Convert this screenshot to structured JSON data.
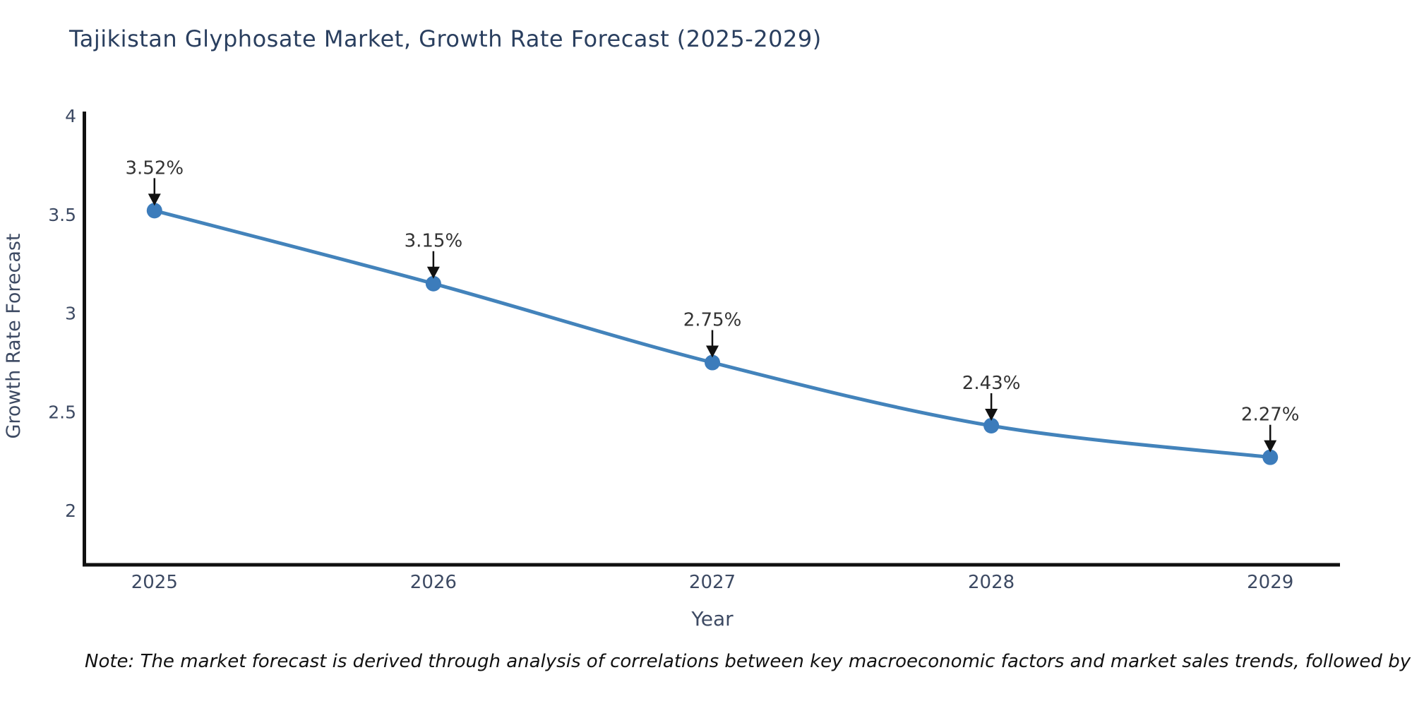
{
  "title": "Tajikistan Glyphosate Market, Growth Rate Forecast (2025-2029)",
  "note": "Note: The market forecast is derived through analysis of correlations between key macroeconomic factors and market sales trends, followed by predictive modeling to project future sales",
  "chart_data": {
    "type": "line",
    "title": "Tajikistan Glyphosate Market, Growth Rate Forecast (2025-2029)",
    "x": [
      2025,
      2026,
      2027,
      2028,
      2029
    ],
    "y": [
      3.52,
      3.15,
      2.75,
      2.43,
      2.27
    ],
    "point_labels": [
      "3.52%",
      "3.15%",
      "2.75%",
      "2.43%",
      "2.27%"
    ],
    "xlabel": "Year",
    "ylabel": "Growth Rate Forecast",
    "xlim": [
      2024.75,
      2029.25
    ],
    "ylim": [
      1.725,
      4.015
    ],
    "yticks": [
      2,
      2.5,
      3,
      3.5,
      4
    ],
    "ytick_labels": [
      "2",
      "2.5",
      "3",
      "3.5",
      "4"
    ],
    "xtick_labels": [
      "2025",
      "2026",
      "2027",
      "2028",
      "2029"
    ],
    "line_shape": "spline",
    "grid": false,
    "legend": "none",
    "annotations_have_arrows": true
  },
  "colors": {
    "background": "#ffffff",
    "title": "#2a3f5f",
    "axis_line": "#111111",
    "tick_label": "#3d4a63",
    "axis_title": "#3d4a63",
    "series_line": "#4383bb",
    "marker_fill": "#3c7cbb",
    "annotation_text": "#333333",
    "annotation_arrow": "#111111",
    "note_text": "#111111"
  }
}
